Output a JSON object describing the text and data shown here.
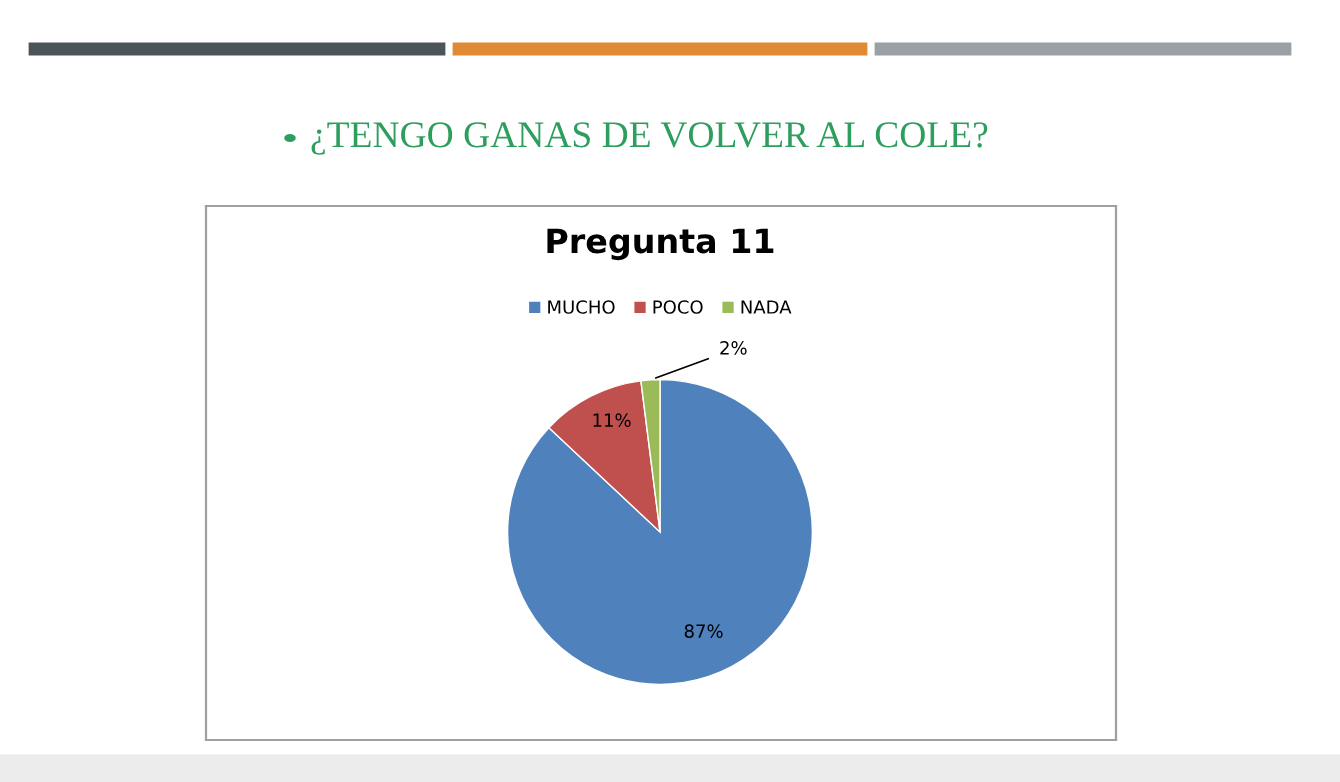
{
  "chart_data": {
    "type": "pie",
    "title": "Pregunta 11",
    "annotations": [
      "¿TENGO GANAS DE VOLVER AL COLE?"
    ],
    "categories": [
      "MUCHO",
      "POCO",
      "NADA"
    ],
    "values": [
      87,
      11,
      2
    ],
    "value_labels": [
      "87%",
      "11%",
      "2%"
    ],
    "colors": [
      "#4f81bd",
      "#c0504d",
      "#9bbb59"
    ],
    "legend": "top"
  }
}
